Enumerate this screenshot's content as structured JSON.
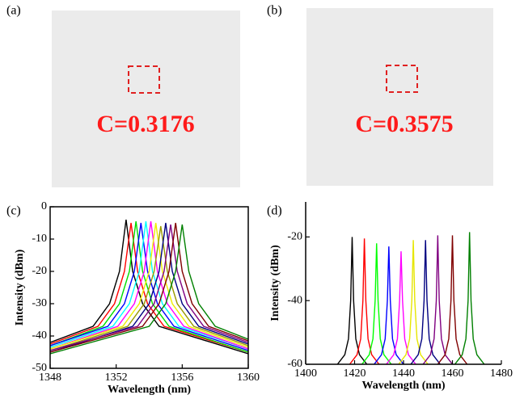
{
  "panels": [
    {
      "label": "(a)",
      "text": "C=0.3176"
    },
    {
      "label": "(b)",
      "text": "C=0.3575"
    }
  ],
  "chart_data": [
    {
      "type": "line",
      "label": "(c)",
      "x_label": "Wavelength (nm)",
      "y_label": "Intensity (dBm)",
      "xlim": [
        1348,
        1360
      ],
      "xticks": [
        1348,
        1352,
        1356,
        1360
      ],
      "ylim": [
        -50,
        0
      ],
      "yticks": [
        0,
        -10,
        -20,
        -30,
        -40,
        -50
      ],
      "series": [
        {
          "color": "#000000",
          "x": [
            1348,
            1350.6,
            1351.6,
            1352.2,
            1352.6,
            1353,
            1353.6,
            1354.6,
            1360
          ],
          "values": [
            -42,
            -37,
            -30,
            -20,
            -4,
            -20,
            -30,
            -37,
            -45.5
          ]
        },
        {
          "color": "#ff0000",
          "x": [
            1348,
            1350.9,
            1351.9,
            1352.5,
            1352.9,
            1353.3,
            1353.9,
            1354.9,
            1360
          ],
          "values": [
            -42.5,
            -37,
            -30,
            -20,
            -5,
            -20,
            -30,
            -37,
            -45
          ]
        },
        {
          "color": "#00dd00",
          "x": [
            1348,
            1351.2,
            1352.2,
            1352.8,
            1353.2,
            1353.6,
            1354.2,
            1355.2,
            1360
          ],
          "values": [
            -43,
            -37,
            -30,
            -20,
            -4.5,
            -20,
            -30,
            -37,
            -45
          ]
        },
        {
          "color": "#0000ff",
          "x": [
            1348,
            1351.5,
            1352.5,
            1353.1,
            1353.5,
            1353.9,
            1354.5,
            1355.5,
            1360
          ],
          "values": [
            -43,
            -37,
            -30,
            -20,
            -5,
            -20,
            -30,
            -37,
            -44.5
          ]
        },
        {
          "color": "#00ffff",
          "x": [
            1348,
            1351.8,
            1352.8,
            1353.4,
            1353.8,
            1354.2,
            1354.8,
            1355.8,
            1360
          ],
          "values": [
            -43.5,
            -37,
            -30,
            -20,
            -4.5,
            -20,
            -30,
            -37,
            -44
          ]
        },
        {
          "color": "#ff00ff",
          "x": [
            1348,
            1352.1,
            1353.1,
            1353.7,
            1354.1,
            1354.5,
            1355.1,
            1356.1,
            1360
          ],
          "values": [
            -44,
            -37,
            -30,
            -20,
            -4.5,
            -20,
            -30,
            -37,
            -44
          ]
        },
        {
          "color": "#eeee00",
          "x": [
            1348,
            1352.4,
            1353.4,
            1354,
            1354.4,
            1354.8,
            1355.4,
            1356.4,
            1360
          ],
          "values": [
            -44,
            -37,
            -30,
            -20,
            -5,
            -20,
            -30,
            -37,
            -43.5
          ]
        },
        {
          "color": "#999900",
          "x": [
            1348,
            1352.7,
            1353.7,
            1354.3,
            1354.7,
            1355.1,
            1355.7,
            1356.7,
            1360
          ],
          "values": [
            -44.5,
            -37,
            -30,
            -20,
            -6,
            -20,
            -30,
            -37,
            -43
          ]
        },
        {
          "color": "#000080",
          "x": [
            1348,
            1353,
            1354,
            1354.6,
            1355,
            1355.4,
            1356,
            1357,
            1360
          ],
          "values": [
            -45,
            -37,
            -30,
            -20,
            -5,
            -20,
            -30,
            -37,
            -42.5
          ]
        },
        {
          "color": "#800080",
          "x": [
            1348,
            1353.3,
            1354.3,
            1354.9,
            1355.3,
            1355.7,
            1356.3,
            1357.3,
            1360
          ],
          "values": [
            -44.5,
            -37,
            -30,
            -20,
            -5.5,
            -20,
            -30,
            -37,
            -42
          ]
        },
        {
          "color": "#800000",
          "x": [
            1348,
            1353.6,
            1354.6,
            1355.2,
            1355.6,
            1356,
            1356.6,
            1357.6,
            1360
          ],
          "values": [
            -45,
            -37,
            -30,
            -20,
            -5,
            -20,
            -30,
            -37,
            -41.5
          ]
        },
        {
          "color": "#008000",
          "x": [
            1348,
            1354,
            1355,
            1355.6,
            1356,
            1356.4,
            1357,
            1358,
            1360
          ],
          "values": [
            -45.5,
            -37,
            -30,
            -20,
            -5.5,
            -20,
            -30,
            -37,
            -41
          ]
        }
      ]
    },
    {
      "type": "line",
      "label": "(d)",
      "x_label": "Wavelength (nm)",
      "y_label": "Intensity (dBm)",
      "xlim": [
        1400,
        1480
      ],
      "xticks": [
        1400,
        1420,
        1440,
        1460,
        1480
      ],
      "ylim": [
        -60,
        -9
      ],
      "yticks": [
        -20,
        -40,
        -60
      ],
      "series": [
        {
          "color": "#000000",
          "x": [
            1413,
            1416,
            1417.5,
            1418.4,
            1419,
            1419.6,
            1420.5,
            1422,
            1425
          ],
          "values": [
            -60,
            -57,
            -52,
            -40,
            -20,
            -40,
            -52,
            -57,
            -60
          ]
        },
        {
          "color": "#ff0000",
          "x": [
            1418,
            1421,
            1422.5,
            1423.4,
            1424,
            1424.6,
            1425.5,
            1427,
            1430
          ],
          "values": [
            -60,
            -57,
            -52,
            -40,
            -20.5,
            -40,
            -52,
            -57,
            -60
          ]
        },
        {
          "color": "#00ff00",
          "x": [
            1423,
            1426,
            1427.5,
            1428.4,
            1429,
            1429.6,
            1430.5,
            1432,
            1435
          ],
          "values": [
            -60,
            -57,
            -52,
            -40,
            -22,
            -40,
            -52,
            -57,
            -60
          ]
        },
        {
          "color": "#0000ff",
          "x": [
            1428,
            1431,
            1432.5,
            1433.4,
            1434,
            1434.6,
            1435.5,
            1437,
            1440
          ],
          "values": [
            -60,
            -57,
            -52,
            -40,
            -23,
            -40,
            -52,
            -57,
            -60
          ]
        },
        {
          "color": "#ff00ff",
          "x": [
            1433,
            1436,
            1437.5,
            1438.4,
            1439,
            1439.6,
            1440.5,
            1442,
            1445
          ],
          "values": [
            -60,
            -57,
            -52,
            -40,
            -24.5,
            -40,
            -52,
            -57,
            -60
          ]
        },
        {
          "color": "#e6e600",
          "x": [
            1438,
            1441,
            1442.5,
            1443.4,
            1444,
            1444.6,
            1445.5,
            1447,
            1450
          ],
          "values": [
            -60,
            -57,
            -52,
            -40,
            -21,
            -40,
            -52,
            -57,
            -60
          ]
        },
        {
          "color": "#000080",
          "x": [
            1443,
            1446,
            1447.5,
            1448.4,
            1449,
            1449.6,
            1450.5,
            1452,
            1455
          ],
          "values": [
            -60,
            -57,
            -52,
            -40,
            -21,
            -40,
            -52,
            -57,
            -60
          ]
        },
        {
          "color": "#800080",
          "x": [
            1448,
            1451,
            1452.5,
            1453.4,
            1454,
            1454.6,
            1455.5,
            1457,
            1460
          ],
          "values": [
            -60,
            -57,
            -52,
            -40,
            -19.5,
            -40,
            -52,
            -57,
            -60
          ]
        },
        {
          "color": "#800000",
          "x": [
            1454,
            1457,
            1458.5,
            1459.4,
            1460,
            1460.6,
            1461.5,
            1463,
            1466
          ],
          "values": [
            -60,
            -57,
            -52,
            -40,
            -19.5,
            -40,
            -52,
            -57,
            -60
          ]
        },
        {
          "color": "#008000",
          "x": [
            1461,
            1464,
            1465.5,
            1466.4,
            1467,
            1467.6,
            1468.5,
            1470,
            1473
          ],
          "values": [
            -60,
            -57,
            -52,
            -40,
            -18.5,
            -40,
            -52,
            -57,
            -60
          ]
        }
      ]
    }
  ]
}
